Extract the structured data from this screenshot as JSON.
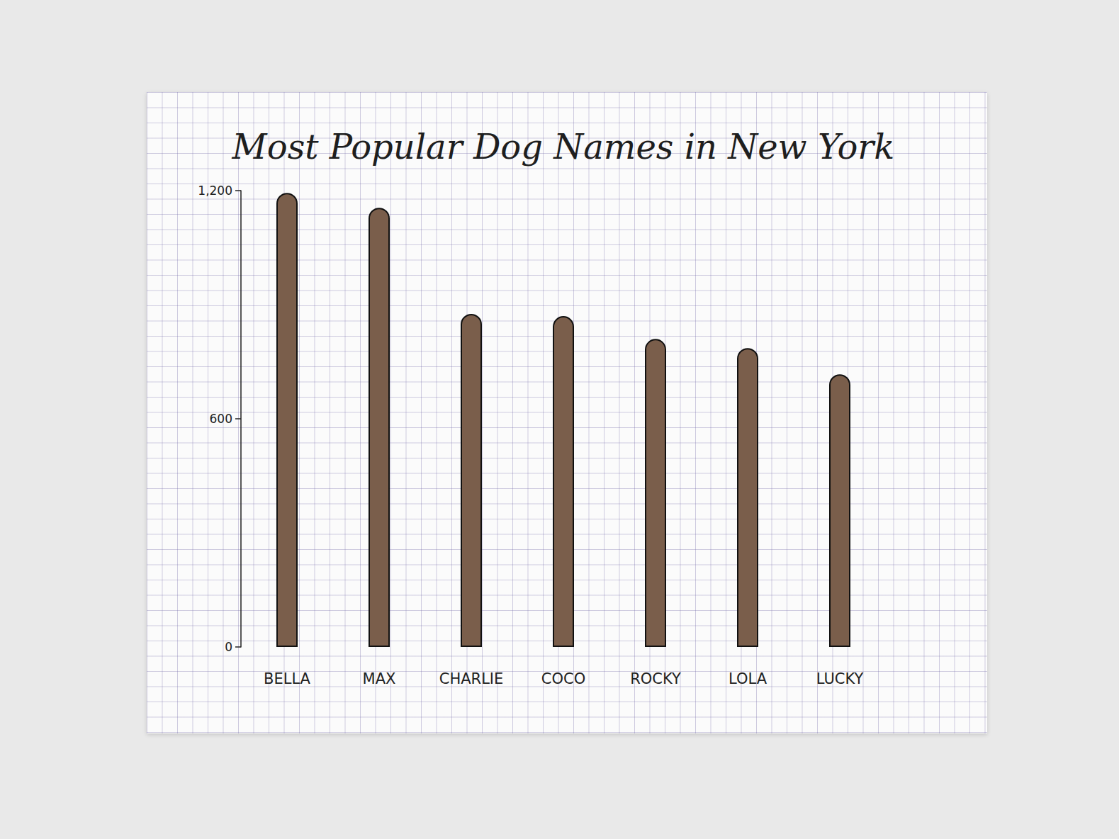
{
  "chart_data": {
    "type": "bar",
    "title": "Most Popular Dog Names in New York",
    "categories": [
      "BELLA",
      "MAX",
      "CHARLIE",
      "COCO",
      "ROCKY",
      "LOLA",
      "LUCKY"
    ],
    "values": [
      1194,
      1155,
      876,
      870,
      810,
      786,
      717
    ],
    "color": "#7a5e4b",
    "ylim": [
      0,
      1200
    ],
    "yticks": [
      0,
      600,
      {
        "value": 1200,
        "label": "1,200"
      }
    ],
    "grid": false
  }
}
